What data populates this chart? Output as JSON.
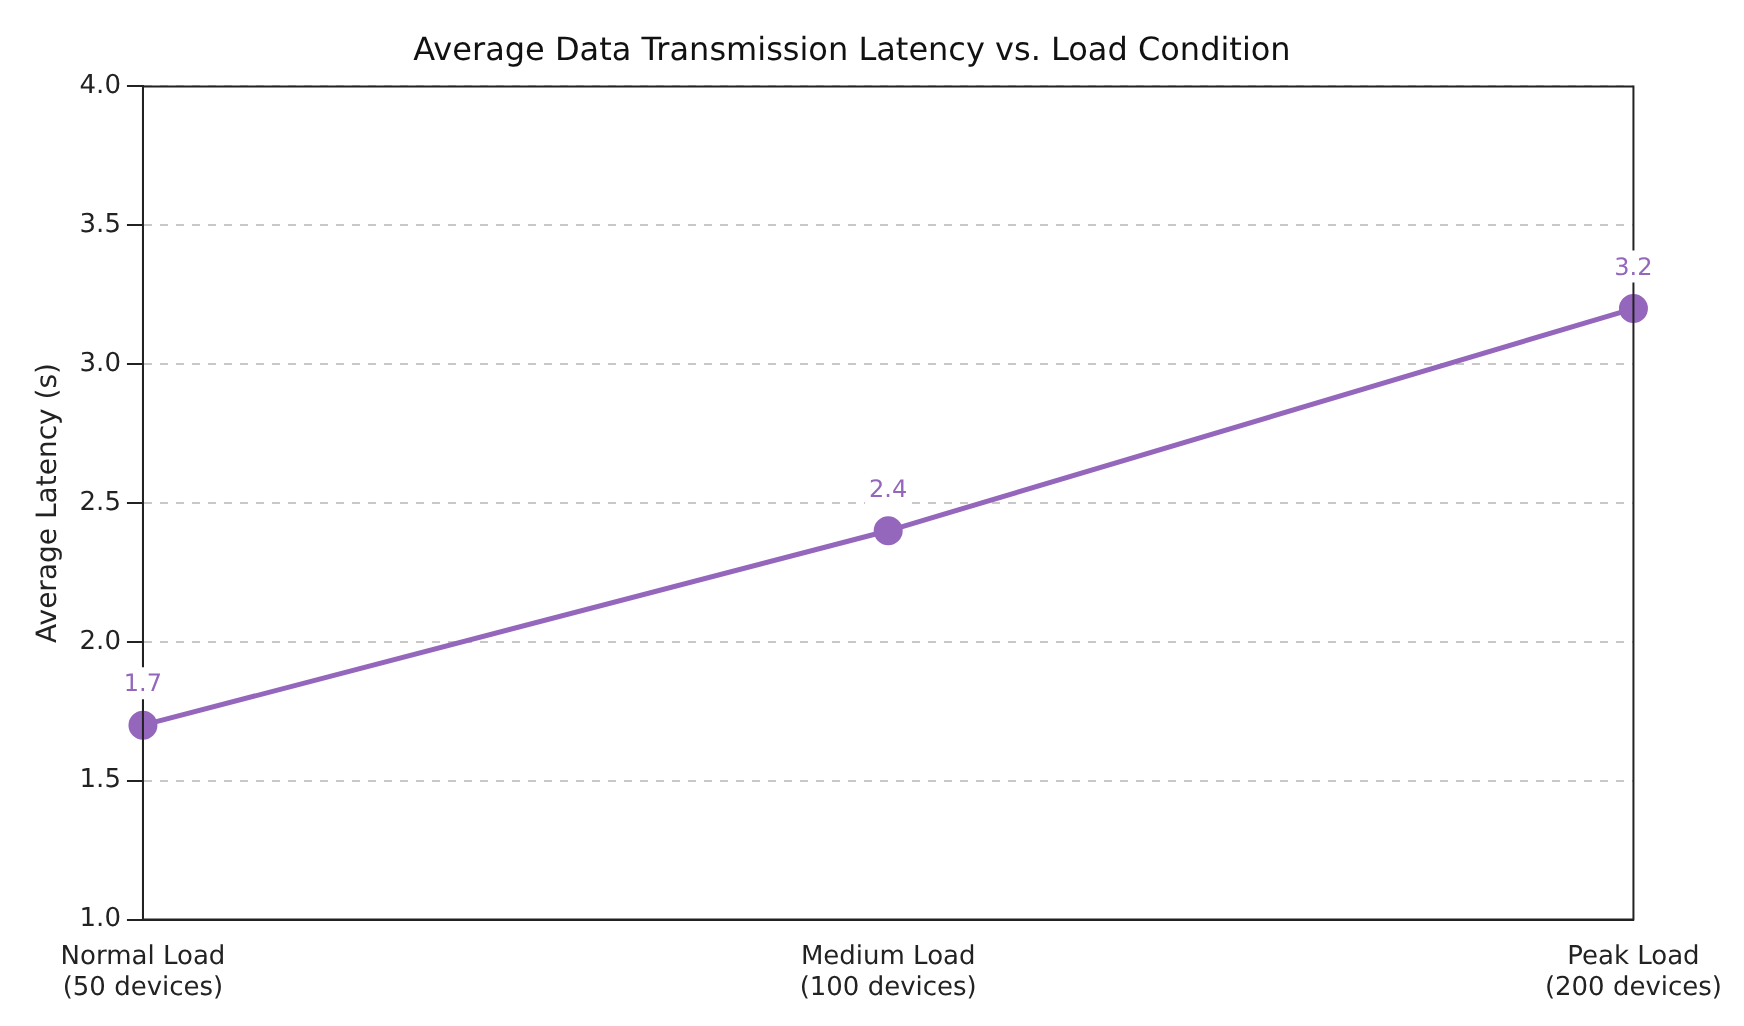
{
  "chart_data": {
    "type": "line",
    "title": "Average Data Transmission Latency vs. Load Condition",
    "ylabel": "Average Latency (s)",
    "categories": [
      "Normal Load\n(50 devices)",
      "Medium Load\n(100 devices)",
      "Peak Load\n(200 devices)"
    ],
    "series": [
      {
        "color": "#9467bd",
        "values": [
          1.7,
          2.4,
          3.2
        ]
      }
    ],
    "ylim": [
      1.0,
      4.0
    ],
    "yticks": [
      {
        "value": 1.0,
        "label": "1.0"
      },
      {
        "value": 1.5,
        "label": "1.5"
      },
      {
        "value": 2.0,
        "label": "2.0"
      },
      {
        "value": 2.5,
        "label": "2.5"
      },
      {
        "value": 3.0,
        "label": "3.0"
      },
      {
        "value": 3.5,
        "label": "3.5"
      },
      {
        "value": 4.0,
        "label": "4.0"
      }
    ],
    "grid": "y",
    "marker": "circle",
    "line_style": "solid",
    "data_labels": true,
    "legend": false
  }
}
